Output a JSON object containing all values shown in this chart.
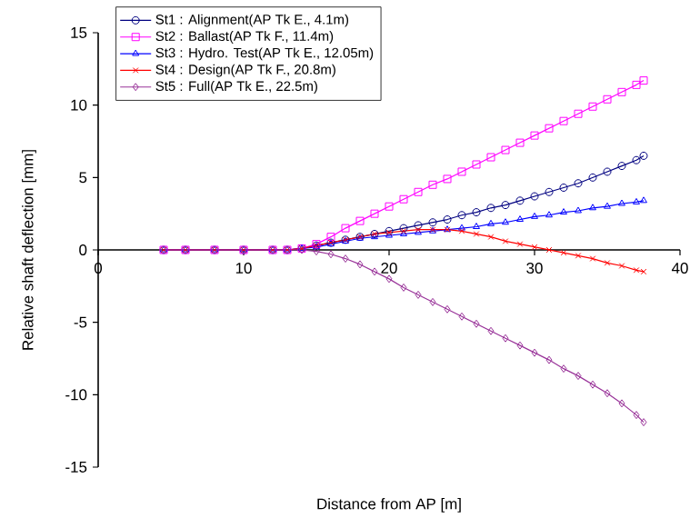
{
  "chart_data": {
    "type": "line",
    "xlabel": "Distance from AP [m]",
    "ylabel": "Relative shaft deflection [mm]",
    "x": [
      4.5,
      6,
      8,
      10,
      12,
      13,
      14,
      15,
      16,
      17,
      18,
      19,
      20,
      21,
      22,
      23,
      24,
      25,
      26,
      27,
      28,
      29,
      30,
      31,
      32,
      33,
      34,
      35,
      36,
      37,
      37.5
    ],
    "series": [
      {
        "name": "St1 : Alignment(AP Tk E., 4.1m)",
        "color": "#000080",
        "marker": "circle",
        "values": [
          0,
          0,
          0,
          0,
          0,
          0,
          0.1,
          0.3,
          0.5,
          0.7,
          0.9,
          1.1,
          1.3,
          1.5,
          1.7,
          1.9,
          2.1,
          2.4,
          2.6,
          2.9,
          3.1,
          3.4,
          3.7,
          4.0,
          4.3,
          4.6,
          5.0,
          5.4,
          5.8,
          6.2,
          6.5
        ]
      },
      {
        "name": "St2 : Ballast(AP Tk F., 11.4m)",
        "color": "#ff00ff",
        "marker": "square",
        "values": [
          0,
          0,
          0,
          0,
          0,
          0,
          0.1,
          0.4,
          0.9,
          1.5,
          2.0,
          2.5,
          3.0,
          3.5,
          4.0,
          4.5,
          4.9,
          5.4,
          5.9,
          6.4,
          6.9,
          7.4,
          7.9,
          8.4,
          8.9,
          9.4,
          9.9,
          10.4,
          10.9,
          11.4,
          11.7
        ]
      },
      {
        "name": "St3 : Hydro. Test(AP Tk E., 12.05m)",
        "color": "#0000ff",
        "marker": "triangle",
        "values": [
          0,
          0,
          0,
          0,
          0,
          0,
          0.1,
          0.2,
          0.4,
          0.6,
          0.8,
          0.9,
          1.0,
          1.1,
          1.2,
          1.3,
          1.4,
          1.5,
          1.6,
          1.8,
          1.9,
          2.1,
          2.3,
          2.4,
          2.6,
          2.7,
          2.9,
          3.0,
          3.2,
          3.3,
          3.4
        ]
      },
      {
        "name": "St4 : Design(AP Tk F., 20.8m)",
        "color": "#ff0000",
        "marker": "cross",
        "values": [
          0,
          0,
          0,
          0,
          0,
          0,
          0.1,
          0.3,
          0.5,
          0.7,
          0.9,
          1.1,
          1.2,
          1.3,
          1.4,
          1.4,
          1.4,
          1.3,
          1.1,
          0.9,
          0.6,
          0.4,
          0.2,
          0.0,
          -0.2,
          -0.4,
          -0.6,
          -0.9,
          -1.1,
          -1.4,
          -1.5
        ]
      },
      {
        "name": "St5 : Full(AP Tk E., 22.5m)",
        "color": "#993399",
        "marker": "diamond",
        "values": [
          0,
          0,
          0,
          0,
          0,
          0,
          0,
          -0.1,
          -0.3,
          -0.6,
          -1.0,
          -1.5,
          -2.0,
          -2.6,
          -3.1,
          -3.6,
          -4.1,
          -4.6,
          -5.1,
          -5.6,
          -6.1,
          -6.6,
          -7.1,
          -7.6,
          -8.2,
          -8.7,
          -9.3,
          -9.9,
          -10.6,
          -11.4,
          -11.9
        ]
      }
    ],
    "xlim": [
      0,
      40
    ],
    "xticks": [
      0,
      10,
      20,
      30,
      40
    ],
    "ylim": [
      -15,
      15
    ],
    "yticks": [
      -15,
      -10,
      -5,
      0,
      5,
      10,
      15
    ],
    "grid": false,
    "legend": "top left"
  }
}
